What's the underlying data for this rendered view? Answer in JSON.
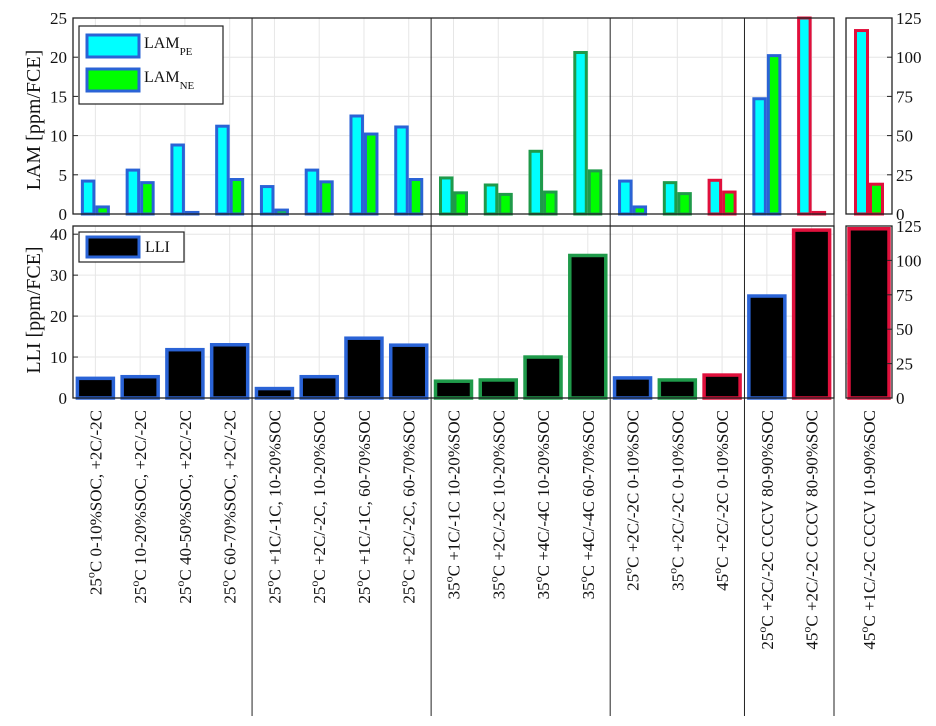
{
  "chart_data": {
    "type": "bar",
    "categories": [
      "25°C 0-10%SOC, +2C/-2C",
      "25°C 10-20%SOC, +2C/-2C",
      "25°C 40-50%SOC, +2C/-2C",
      "25°C 60-70%SOC, +2C/-2C",
      "25°C +1C/-1C, 10-20%SOC",
      "25°C +2C/-2C, 10-20%SOC",
      "25°C +1C/-1C, 60-70%SOC",
      "25°C +2C/-2C, 60-70%SOC",
      "35°C +1C/-1C 10-20%SOC",
      "35°C +2C/-2C 10-20%SOC",
      "35°C +4C/-4C 10-20%SOC",
      "35°C +4C/-4C 60-70%SOC",
      "25°C +2C/-2C 0-10%SOC",
      "35°C +2C/-2C 0-10%SOC",
      "45°C +2C/-2C 0-10%SOC",
      "25°C +2C/-2C CCCV 80-90%SOC",
      "45°C +2C/-2C CCCV 80-90%SOC",
      "45°C +1C/-2C CCCV 10-90%SOC"
    ],
    "cat_parts": [
      [
        "25",
        "C 0-10%SOC, +2C/-2C"
      ],
      [
        "25",
        "C 10-20%SOC, +2C/-2C"
      ],
      [
        "25",
        "C 40-50%SOC, +2C/-2C"
      ],
      [
        "25",
        "C 60-70%SOC, +2C/-2C"
      ],
      [
        "25",
        "C +1C/-1C, 10-20%SOC"
      ],
      [
        "25",
        "C +2C/-2C, 10-20%SOC"
      ],
      [
        "25",
        "C +1C/-1C, 60-70%SOC"
      ],
      [
        "25",
        "C +2C/-2C, 60-70%SOC"
      ],
      [
        "35",
        "C +1C/-1C 10-20%SOC"
      ],
      [
        "35",
        "C +2C/-2C 10-20%SOC"
      ],
      [
        "35",
        "C +4C/-4C 10-20%SOC"
      ],
      [
        "35",
        "C +4C/-4C 60-70%SOC"
      ],
      [
        "25",
        "C +2C/-2C 0-10%SOC"
      ],
      [
        "35",
        "C +2C/-2C 0-10%SOC"
      ],
      [
        "45",
        "C +2C/-2C 0-10%SOC"
      ],
      [
        "25",
        "C +2C/-2C CCCV 80-90%SOC"
      ],
      [
        "45",
        "C +2C/-2C CCCV 80-90%SOC"
      ],
      [
        "45",
        "C +1C/-2C CCCV 10-90%SOC"
      ]
    ],
    "edge_colors": [
      "#2a63d6",
      "#2a63d6",
      "#2a63d6",
      "#2a63d6",
      "#2a63d6",
      "#2a63d6",
      "#2a63d6",
      "#2a63d6",
      "#1f9a4a",
      "#1f9a4a",
      "#1f9a4a",
      "#1f9a4a",
      "#2a63d6",
      "#1f9a4a",
      "#e0103c",
      "#2a63d6",
      "#e0103c",
      "#e0103c"
    ],
    "top": {
      "ylabel": "LAM [ppm/FCE]",
      "ylim": [
        0,
        25
      ],
      "yticks": [
        "0",
        "5",
        "10",
        "15",
        "20",
        "25"
      ],
      "right_ylim": [
        0,
        125
      ],
      "right_yticks": [
        "0",
        "25",
        "50",
        "75",
        "100",
        "125"
      ],
      "legend": {
        "position": "top-left",
        "entries": [
          {
            "base": "LAM",
            "sub": "PE"
          },
          {
            "base": "LAM",
            "sub": "NE"
          }
        ]
      },
      "series": [
        {
          "name": "LAMPE",
          "color": "#00ffff",
          "values": [
            4.2,
            5.6,
            8.8,
            11.2,
            3.5,
            5.6,
            12.5,
            11.1,
            4.6,
            3.7,
            8.0,
            20.6,
            4.2,
            4.0,
            4.3,
            14.7,
            25.0,
            117
          ]
        },
        {
          "name": "LAMNE",
          "color": "#00ff00",
          "values": [
            0.9,
            4.0,
            0.2,
            4.4,
            0.5,
            4.1,
            10.2,
            4.4,
            2.7,
            2.5,
            2.8,
            5.5,
            0.9,
            2.6,
            2.8,
            20.2,
            0.2,
            19
          ]
        }
      ]
    },
    "bottom": {
      "ylabel": "LLI [ppm/FCE]",
      "ylim": [
        0,
        42
      ],
      "yticks": [
        "0",
        "10",
        "20",
        "30",
        "40"
      ],
      "right_ylim": [
        0,
        125
      ],
      "right_yticks": [
        "0",
        "25",
        "50",
        "75",
        "100",
        "125"
      ],
      "legend": {
        "position": "top-left",
        "entries": [
          {
            "base": "LLI"
          }
        ]
      },
      "series": [
        {
          "name": "LLI",
          "color": "#000000",
          "values": [
            4.8,
            5.2,
            11.8,
            13.0,
            2.3,
            5.2,
            14.6,
            12.9,
            4.1,
            4.4,
            10.0,
            34.8,
            4.9,
            4.4,
            5.6,
            24.9,
            41.0,
            123
          ]
        }
      ]
    },
    "group_separators_after": [
      4,
      8,
      12,
      15,
      17
    ],
    "grid": true
  }
}
